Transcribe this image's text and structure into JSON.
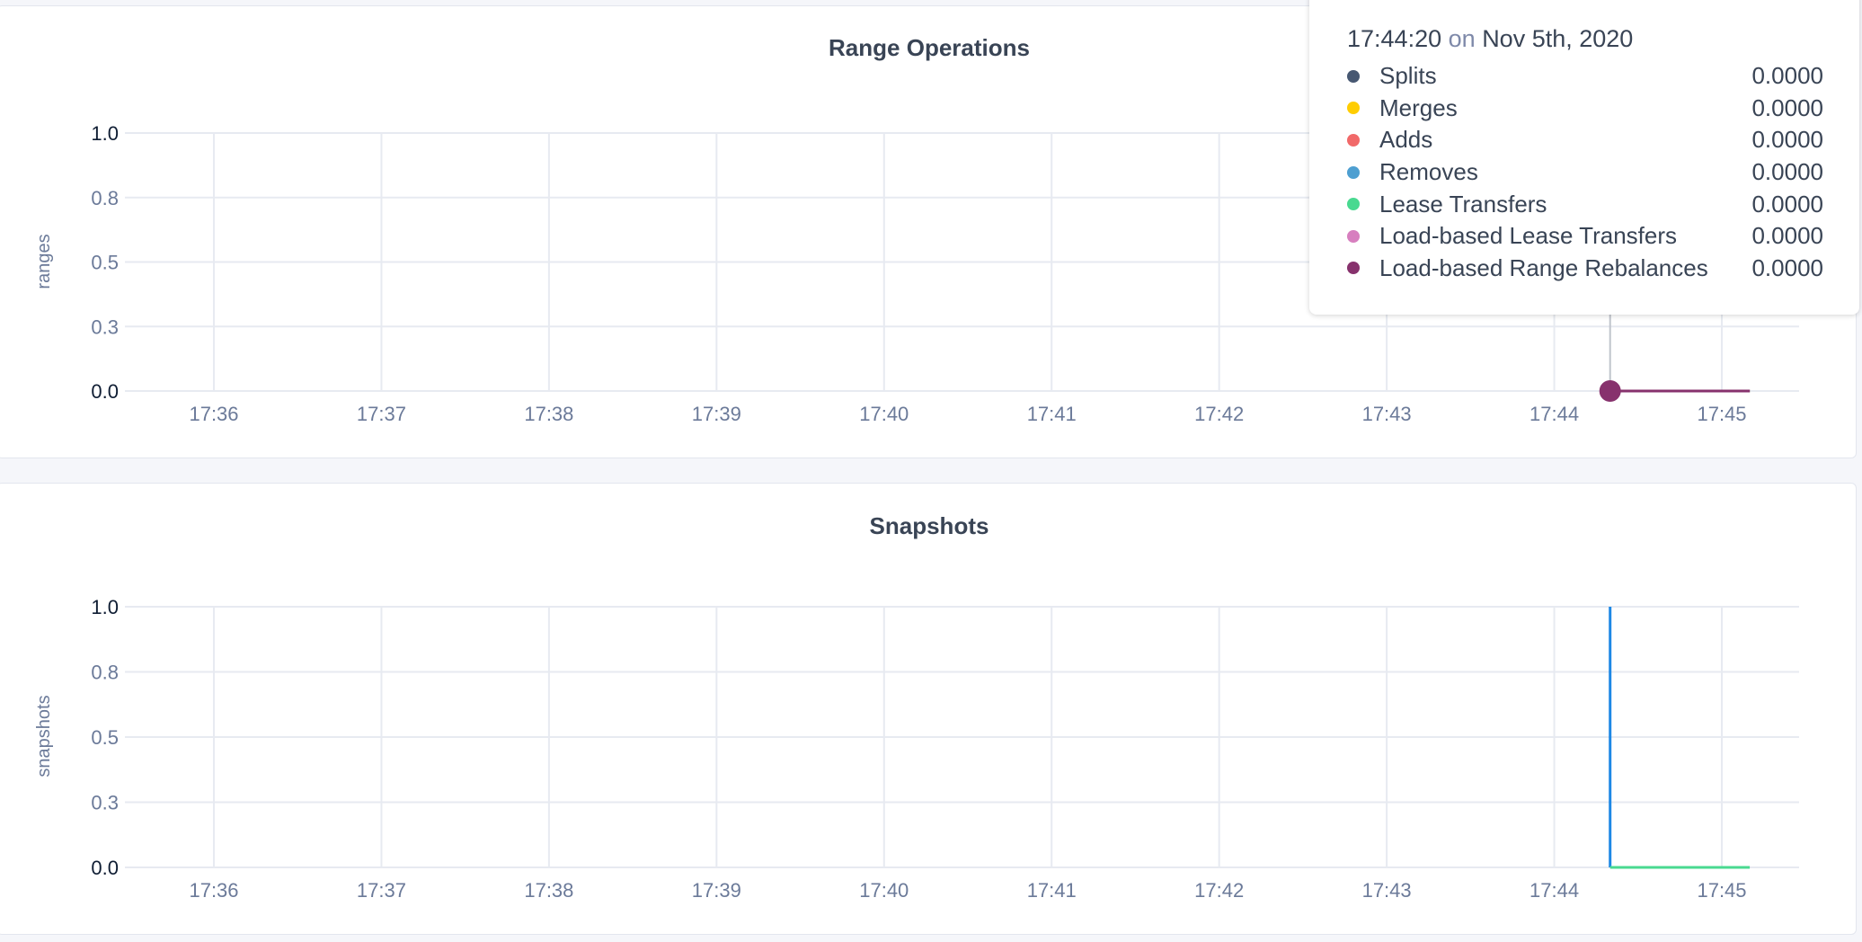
{
  "chart_data": [
    {
      "type": "line",
      "title": "Range Operations",
      "ylabel": "ranges",
      "ylim": [
        0,
        1
      ],
      "yticks": [
        "0.0",
        "0.3",
        "0.5",
        "0.8",
        "1.0"
      ],
      "ytick_values": [
        0,
        0.25,
        0.5,
        0.75,
        1
      ],
      "xticks": [
        "17:36",
        "17:37",
        "17:38",
        "17:39",
        "17:40",
        "17:41",
        "17:42",
        "17:43",
        "17:44",
        "17:45"
      ],
      "xlim": [
        "17:35:25",
        "17:45:55"
      ],
      "grid": true,
      "series": [
        {
          "name": "Splits",
          "color": "#475872",
          "x": [
            "17:44:20",
            "17:45:10"
          ],
          "y": [
            0,
            0
          ]
        },
        {
          "name": "Merges",
          "color": "#ffcd02",
          "x": [
            "17:44:20",
            "17:45:10"
          ],
          "y": [
            0,
            0
          ]
        },
        {
          "name": "Adds",
          "color": "#f16969",
          "x": [
            "17:44:20",
            "17:45:10"
          ],
          "y": [
            0,
            0
          ]
        },
        {
          "name": "Removes",
          "color": "#4e9fd1",
          "x": [
            "17:44:20",
            "17:45:10"
          ],
          "y": [
            0,
            0
          ]
        },
        {
          "name": "Lease Transfers",
          "color": "#49d990",
          "x": [
            "17:44:20",
            "17:45:10"
          ],
          "y": [
            0,
            0
          ]
        },
        {
          "name": "Load-based Lease Transfers",
          "color": "#d77fbf",
          "x": [
            "17:44:20",
            "17:45:10"
          ],
          "y": [
            0,
            0
          ]
        },
        {
          "name": "Load-based Range Rebalances",
          "color": "#87326d",
          "x": [
            "17:44:20",
            "17:45:10"
          ],
          "y": [
            0,
            0
          ]
        }
      ],
      "tooltip": {
        "time": "17:44:20",
        "on": "on",
        "date": "Nov 5th, 2020",
        "values": [
          "0.0000",
          "0.0000",
          "0.0000",
          "0.0000",
          "0.0000",
          "0.0000",
          "0.0000"
        ]
      }
    },
    {
      "type": "line",
      "title": "Snapshots",
      "ylabel": "snapshots",
      "ylim": [
        0,
        1
      ],
      "yticks": [
        "0.0",
        "0.3",
        "0.5",
        "0.8",
        "1.0"
      ],
      "ytick_values": [
        0,
        0.25,
        0.5,
        0.75,
        1
      ],
      "xticks": [
        "17:36",
        "17:37",
        "17:38",
        "17:39",
        "17:40",
        "17:41",
        "17:42",
        "17:43",
        "17:44",
        "17:45"
      ],
      "xlim": [
        "17:35:25",
        "17:45:55"
      ],
      "grid": true,
      "series": [
        {
          "color": "#1e88e5",
          "x": [
            "17:44:20",
            "17:44:20"
          ],
          "y": [
            1,
            0
          ]
        },
        {
          "color": "#49d990",
          "x": [
            "17:44:20",
            "17:45:10"
          ],
          "y": [
            0,
            0
          ]
        }
      ]
    }
  ]
}
